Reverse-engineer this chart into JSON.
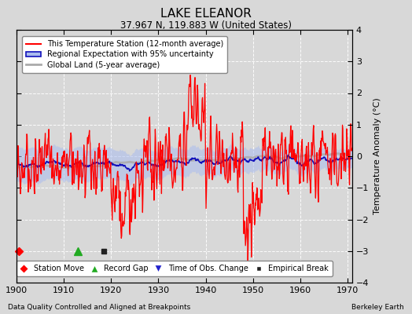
{
  "title": "LAKE ELEANOR",
  "subtitle": "37.967 N, 119.883 W (United States)",
  "ylabel": "Temperature Anomaly (°C)",
  "xlabel_footnote": "Data Quality Controlled and Aligned at Breakpoints",
  "xlabel_credit": "Berkeley Earth",
  "xmin": 1900,
  "xmax": 1971,
  "ymin": -4,
  "ymax": 4,
  "yticks": [
    -4,
    -3,
    -2,
    -1,
    0,
    1,
    2,
    3,
    4
  ],
  "xticks": [
    1900,
    1910,
    1920,
    1930,
    1940,
    1950,
    1960,
    1970
  ],
  "red_color": "#ff0000",
  "blue_color": "#1111bb",
  "blue_fill_color": "#aabbee",
  "gray_color": "#aaaaaa",
  "bg_color": "#d8d8d8",
  "grid_color": "#ffffff",
  "seed": 17,
  "station_move_x": 1900.5,
  "record_gap_x": 1913.0,
  "empirical_break_x": 1918.5
}
